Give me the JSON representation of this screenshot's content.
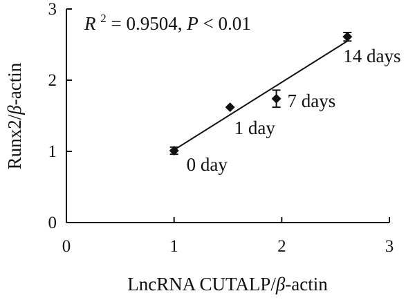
{
  "chart_data": {
    "type": "scatter",
    "title": "",
    "xlabel": "LncRNA CUTALP/β-actin",
    "ylabel": "Runx2/β-actin",
    "xlim": [
      0,
      3
    ],
    "ylim": [
      0,
      3
    ],
    "x_ticks": [
      "0",
      "1",
      "2",
      "3"
    ],
    "y_ticks": [
      "0",
      "1",
      "2",
      "3"
    ],
    "grid": false,
    "points": [
      {
        "x": 1.0,
        "y": 1.01,
        "err": 0.05,
        "label": "0 day"
      },
      {
        "x": 1.52,
        "y": 1.62,
        "err": 0.0,
        "label": "1 day"
      },
      {
        "x": 1.95,
        "y": 1.74,
        "err": 0.12,
        "label": "7 days"
      },
      {
        "x": 2.61,
        "y": 2.61,
        "err": 0.06,
        "label": "14 days"
      }
    ],
    "fit_line": {
      "x": [
        1.0,
        2.61
      ],
      "y": [
        1.02,
        2.55
      ]
    },
    "annotation": {
      "r_symbol": "R",
      "r_exp": "2",
      "r_value": " = 0.9504, ",
      "p_symbol": "P",
      "p_value": " < 0.01"
    },
    "colors": {
      "ink": "#111111"
    }
  }
}
